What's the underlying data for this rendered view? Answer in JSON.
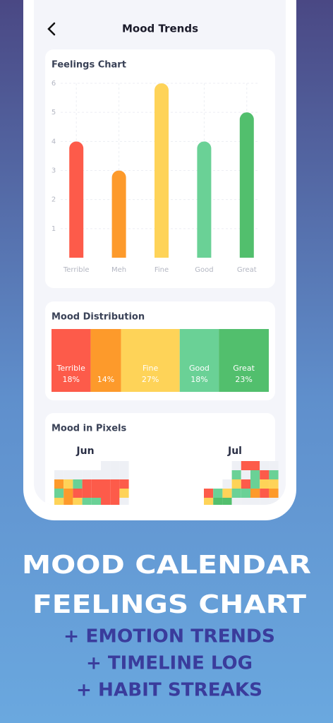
{
  "header": {
    "title": "Mood Trends"
  },
  "feelings_chart": {
    "type": "bar",
    "title": "Feelings Chart",
    "categories": [
      "Terrible",
      "Meh",
      "Fine",
      "Good",
      "Great"
    ],
    "values": [
      4,
      3,
      6,
      4,
      5
    ],
    "colors": [
      "#fd5b4a",
      "#fd9a2b",
      "#fed358",
      "#6ad196",
      "#52bf6d"
    ],
    "ylim": [
      0,
      6
    ],
    "yticks": [
      1,
      2,
      3,
      4,
      5,
      6
    ],
    "grid": true
  },
  "mood_distribution": {
    "type": "stacked-bar",
    "title": "Mood Distribution",
    "categories": [
      "Terrible",
      null,
      "Fine",
      "Good",
      "Great"
    ],
    "values": [
      18,
      14,
      27,
      18,
      23
    ],
    "value_labels": [
      "18%",
      "14%",
      "27%",
      "18%",
      "23%"
    ],
    "colors": [
      "#fd5b4a",
      "#fd9a2b",
      "#fed358",
      "#6ad196",
      "#52bf6d"
    ]
  },
  "mood_pixels": {
    "title": "Mood in Pixels",
    "months": [
      "Jun",
      "Jul"
    ]
  },
  "promo": {
    "headline": [
      "MOOD CALENDAR",
      "FEELINGS CHART"
    ],
    "features": [
      "+ EMOTION TRENDS",
      "+ TIMELINE LOG",
      "+ HABIT STREAKS"
    ]
  }
}
